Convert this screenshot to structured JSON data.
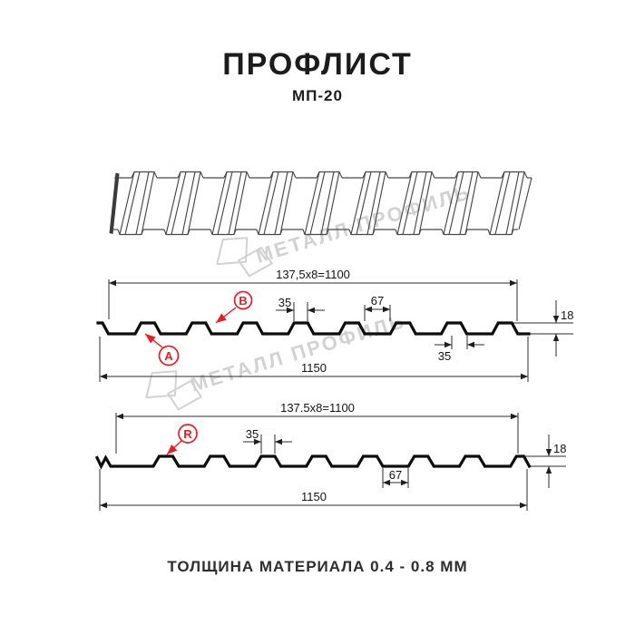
{
  "header": {
    "title": "ПРОФЛИСТ",
    "subtitle": "МП-20"
  },
  "footer": {
    "text": "ТОЛЩИНА МАТЕРИАЛА 0.4 - 0.8 ММ"
  },
  "watermark": {
    "text": "МЕТАЛЛ ПРОФИЛЬ"
  },
  "colors": {
    "accent_red": "#ed1c24",
    "line": "#1e1e1e",
    "watermark": "#d2d2d2"
  },
  "drawing_top": {
    "dim_pitch_formula": "137,5x8=1100",
    "dim_rib_top_width": "35",
    "dim_flat_width": "67",
    "dim_height": "18",
    "dim_edge_width": "35",
    "dim_total_width": "1150",
    "label_a": "A",
    "label_b": "B"
  },
  "drawing_bottom": {
    "dim_pitch_formula": "137.5x8=1100",
    "dim_rib_top_width": "35",
    "dim_flat_width": "67",
    "dim_height": "18",
    "dim_total_width": "1150",
    "label_r": "R"
  }
}
